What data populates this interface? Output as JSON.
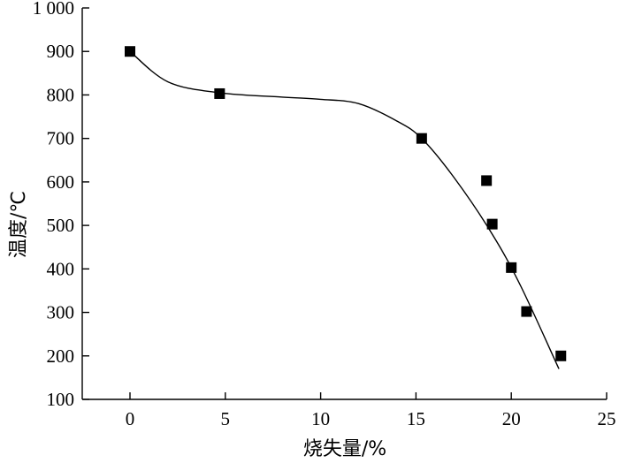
{
  "chart_data": {
    "type": "scatter",
    "title": "",
    "xlabel": "烧失量/%",
    "ylabel": "温度/℃",
    "xlim": [
      -2.5,
      25
    ],
    "ylim": [
      100,
      1000
    ],
    "xticks": [
      0,
      5,
      10,
      15,
      20,
      25
    ],
    "yticks": [
      100,
      200,
      300,
      400,
      500,
      600,
      700,
      800,
      900,
      1000
    ],
    "xtick_labels": [
      "0",
      "5",
      "10",
      "15",
      "20",
      "25"
    ],
    "ytick_labels": [
      "100",
      "200",
      "300",
      "400",
      "500",
      "600",
      "700",
      "800",
      "900",
      "1 000"
    ],
    "grid": false,
    "series": [
      {
        "marker": "square",
        "x": [
          0,
          4.7,
          15.3,
          18.7,
          19.0,
          20.0,
          20.8,
          22.6
        ],
        "y": [
          900,
          803,
          700,
          603,
          503,
          403,
          302,
          200
        ]
      }
    ],
    "fit_curve": {
      "x": [
        0,
        2,
        4.7,
        8,
        10,
        12,
        14,
        15.3,
        17,
        19,
        20.5,
        22.5
      ],
      "y": [
        900,
        830,
        805,
        795,
        790,
        780,
        740,
        700,
        610,
        480,
        360,
        170
      ]
    }
  }
}
